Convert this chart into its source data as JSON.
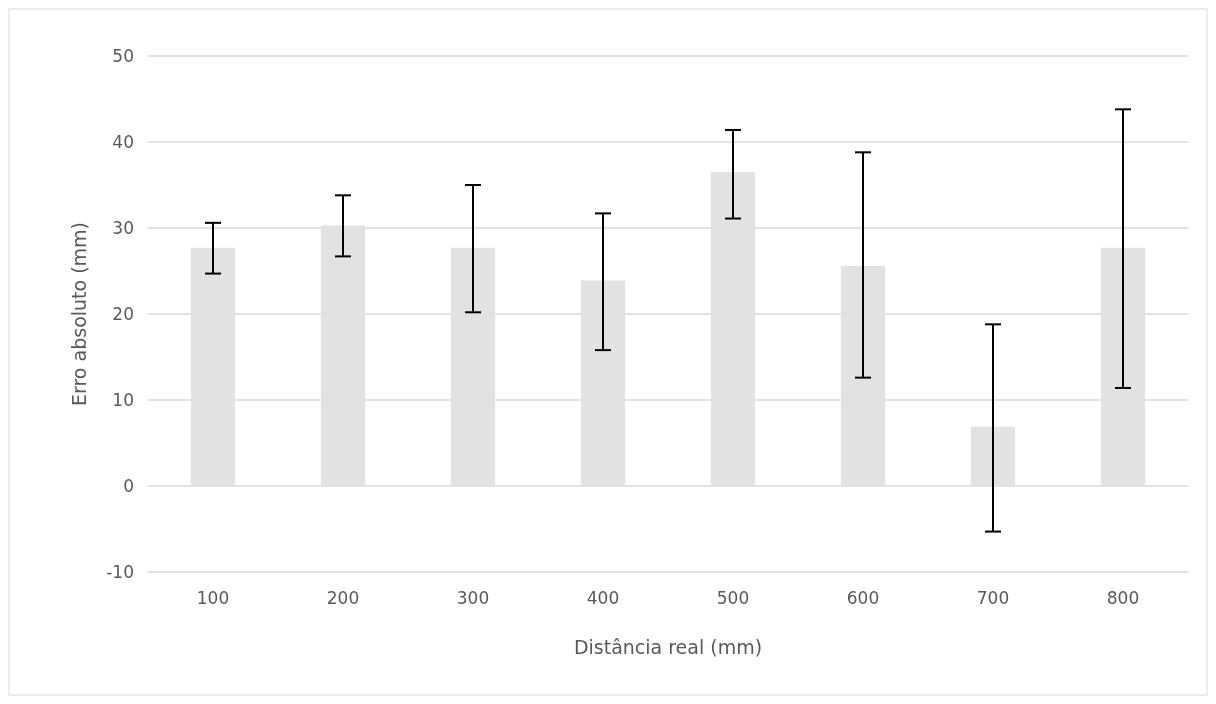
{
  "chart_data": {
    "type": "bar",
    "xlabel": "Distância real (mm)",
    "ylabel": "Erro absoluto (mm)",
    "categories": [
      "100",
      "200",
      "300",
      "400",
      "500",
      "600",
      "700",
      "800"
    ],
    "values": [
      27.7,
      30.3,
      27.7,
      23.9,
      36.5,
      25.6,
      6.9,
      27.7
    ],
    "errors": [
      [
        24.7,
        30.6
      ],
      [
        26.7,
        33.8
      ],
      [
        20.2,
        35.0
      ],
      [
        15.8,
        31.7
      ],
      [
        31.1,
        41.4
      ],
      [
        12.6,
        38.8
      ],
      [
        -5.3,
        18.8
      ],
      [
        11.4,
        43.8
      ]
    ],
    "color": "#e3e2e3",
    "ylim": [
      -10,
      50
    ],
    "yticks": [
      -10,
      0,
      10,
      20,
      30,
      40,
      50
    ],
    "grid": "y"
  }
}
